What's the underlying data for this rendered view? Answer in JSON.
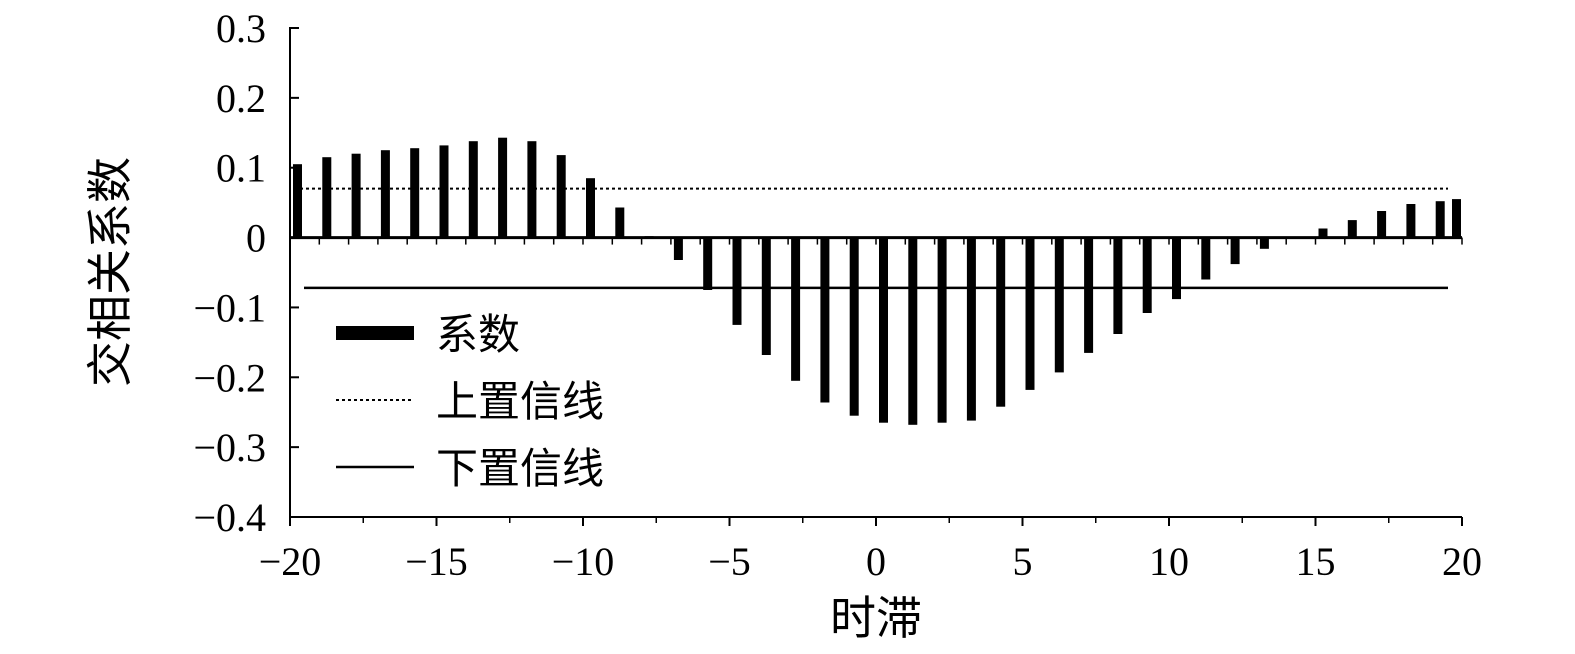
{
  "chart_data": {
    "type": "bar",
    "xlabel": "时滞",
    "ylabel": "交相关系数",
    "xlim": [
      -20,
      20
    ],
    "ylim": [
      -0.4,
      0.3
    ],
    "x_ticks": [
      -20,
      -15,
      -10,
      -5,
      0,
      5,
      10,
      15,
      20
    ],
    "x_tick_labels": [
      "−20",
      "−15",
      "−10",
      "−5",
      "0",
      "5",
      "10",
      "15",
      "20"
    ],
    "y_ticks": [
      -0.4,
      -0.3,
      -0.2,
      -0.1,
      0,
      0.1,
      0.2,
      0.3
    ],
    "y_tick_labels": [
      "−0.4",
      "−0.3",
      "−0.2",
      "−0.1",
      "0",
      "0.1",
      "0.2",
      "0.3"
    ],
    "legend_position": "lower-left",
    "series": [
      {
        "name": "系数",
        "style": "bar",
        "color": "#000000",
        "x": [
          -20,
          -19,
          -18,
          -17,
          -16,
          -15,
          -14,
          -13,
          -12,
          -11,
          -10,
          -9,
          -8,
          -7,
          -6,
          -5,
          -4,
          -3,
          -2,
          -1,
          0,
          1,
          2,
          3,
          4,
          5,
          6,
          7,
          8,
          9,
          10,
          11,
          12,
          13,
          14,
          15,
          16,
          17,
          18,
          19,
          20
        ],
        "values": [
          0.105,
          0.115,
          0.12,
          0.125,
          0.128,
          0.132,
          0.138,
          0.143,
          0.138,
          0.118,
          0.085,
          0.043,
          0.002,
          -0.032,
          -0.075,
          -0.125,
          -0.168,
          -0.205,
          -0.236,
          -0.255,
          -0.265,
          -0.268,
          -0.265,
          -0.262,
          -0.242,
          -0.218,
          -0.193,
          -0.165,
          -0.138,
          -0.108,
          -0.088,
          -0.06,
          -0.038,
          -0.016,
          0.0,
          0.013,
          0.025,
          0.038,
          0.048,
          0.052,
          0.055
        ]
      },
      {
        "name": "上置信线",
        "style": "dotted",
        "color": "#000000",
        "value": 0.07
      },
      {
        "name": "下置信线",
        "style": "solid",
        "color": "#000000",
        "value": -0.072
      }
    ]
  }
}
